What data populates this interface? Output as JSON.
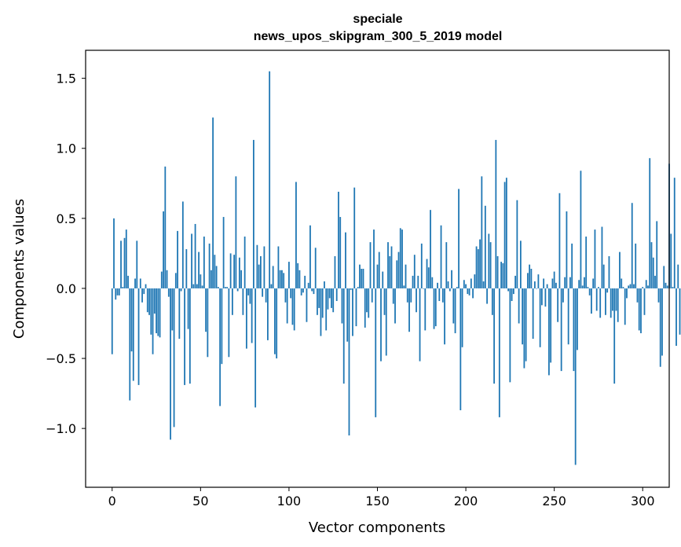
{
  "chart_data": {
    "type": "bar",
    "title": "speciale",
    "subtitle": "news_upos_skipgram_300_5_2019 model",
    "xlabel": "Vector components",
    "ylabel": "Components values",
    "xlim": [
      -15,
      315
    ],
    "ylim": [
      -1.42,
      1.7
    ],
    "xticks": [
      0,
      50,
      100,
      150,
      200,
      250,
      300
    ],
    "xtick_labels": [
      "0",
      "50",
      "100",
      "150",
      "200",
      "250",
      "300"
    ],
    "yticks": [
      -1.0,
      -0.5,
      0.0,
      0.5,
      1.0,
      1.5
    ],
    "ytick_labels": [
      "−1.0",
      "−0.5",
      "0.0",
      "0.5",
      "1.0",
      "1.5"
    ],
    "bar_color": "#1f77b4",
    "values": [
      -0.47,
      0.5,
      -0.08,
      -0.05,
      -0.05,
      0.34,
      0.01,
      0.36,
      0.42,
      0.09,
      -0.8,
      -0.45,
      -0.66,
      0.07,
      0.34,
      -0.69,
      0.07,
      -0.1,
      -0.04,
      0.03,
      -0.17,
      -0.19,
      -0.33,
      -0.47,
      -0.18,
      -0.32,
      -0.34,
      -0.35,
      0.12,
      0.55,
      0.87,
      0.13,
      -0.06,
      -1.08,
      -0.3,
      -0.99,
      0.11,
      0.41,
      -0.36,
      -0.02,
      0.62,
      -0.69,
      0.28,
      -0.29,
      -0.68,
      0.39,
      0.03,
      0.46,
      0.03,
      0.26,
      0.1,
      0.02,
      0.37,
      -0.31,
      -0.49,
      0.32,
      0.13,
      1.22,
      0.24,
      0.16,
      0.01,
      -0.84,
      -0.54,
      0.51,
      0.01,
      0.01,
      -0.49,
      0.25,
      -0.19,
      0.24,
      0.8,
      -0.02,
      0.22,
      0.13,
      -0.19,
      0.37,
      -0.43,
      -0.05,
      -0.11,
      -0.39,
      1.06,
      -0.85,
      0.31,
      0.17,
      0.23,
      -0.06,
      0.3,
      -0.1,
      -0.37,
      1.55,
      0.03,
      0.16,
      -0.47,
      -0.5,
      0.3,
      0.13,
      0.13,
      0.11,
      -0.1,
      -0.25,
      0.19,
      -0.07,
      -0.26,
      -0.3,
      0.76,
      0.18,
      0.13,
      -0.05,
      -0.03,
      0.09,
      -0.24,
      0.04,
      0.45,
      -0.02,
      -0.04,
      0.29,
      -0.19,
      -0.14,
      -0.34,
      -0.21,
      0.05,
      -0.3,
      -0.15,
      -0.07,
      -0.14,
      -0.17,
      0.23,
      -0.09,
      0.69,
      0.51,
      -0.25,
      -0.68,
      0.4,
      -0.38,
      -1.05,
      -0.01,
      -0.34,
      0.72,
      -0.27,
      0.01,
      0.17,
      0.14,
      0.14,
      -0.28,
      -0.17,
      -0.21,
      0.33,
      -0.1,
      0.42,
      -0.92,
      0.17,
      0.26,
      -0.52,
      0.12,
      -0.19,
      -0.48,
      0.33,
      0.23,
      0.3,
      -0.11,
      -0.25,
      0.2,
      0.26,
      0.43,
      0.42,
      0.02,
      0.17,
      -0.1,
      -0.31,
      -0.1,
      0.09,
      0.24,
      -0.17,
      0.09,
      -0.52,
      0.32,
      0.0,
      -0.3,
      0.21,
      0.15,
      0.56,
      0.08,
      -0.29,
      -0.27,
      0.04,
      -0.09,
      0.45,
      -0.1,
      -0.4,
      0.33,
      0.05,
      -0.02,
      0.13,
      -0.25,
      -0.32,
      0.01,
      0.71,
      -0.87,
      -0.42,
      0.06,
      0.03,
      -0.04,
      -0.05,
      0.07,
      -0.07,
      0.1,
      0.3,
      0.28,
      0.35,
      0.8,
      0.05,
      0.59,
      -0.11,
      0.39,
      0.33,
      -0.19,
      -0.68,
      1.06,
      0.23,
      -0.92,
      0.19,
      0.18,
      0.76,
      0.79,
      -0.02,
      -0.67,
      -0.09,
      -0.04,
      0.09,
      0.63,
      -0.25,
      0.34,
      -0.4,
      -0.57,
      -0.52,
      0.11,
      0.17,
      0.14,
      -0.36,
      0.05,
      0.0,
      0.1,
      -0.42,
      -0.12,
      0.07,
      -0.13,
      0.03,
      -0.62,
      -0.53,
      0.07,
      0.12,
      0.04,
      -0.24,
      0.68,
      -0.59,
      -0.1,
      0.08,
      0.55,
      -0.4,
      0.08,
      0.32,
      -0.59,
      -1.26,
      -0.44,
      0.06,
      0.84,
      0.02,
      0.08,
      0.37,
      0.01,
      -0.05,
      -0.18,
      0.07,
      0.42,
      -0.16,
      0.01,
      -0.21,
      0.44,
      0.17,
      -0.19,
      -0.03,
      0.23,
      -0.21,
      -0.16,
      -0.68,
      -0.16,
      -0.24,
      0.26,
      0.07,
      0.01,
      -0.26,
      -0.07,
      0.02,
      0.03,
      0.61,
      0.03,
      0.32,
      -0.1,
      -0.3,
      -0.32,
      0.01,
      -0.19,
      0.06,
      0.02,
      0.93,
      0.33,
      0.22,
      0.09,
      0.48,
      -0.1,
      -0.56,
      -0.48,
      0.16,
      0.04,
      0.02,
      0.89,
      0.39,
      0.01,
      0.79,
      -0.41,
      0.17,
      -0.33
    ]
  }
}
